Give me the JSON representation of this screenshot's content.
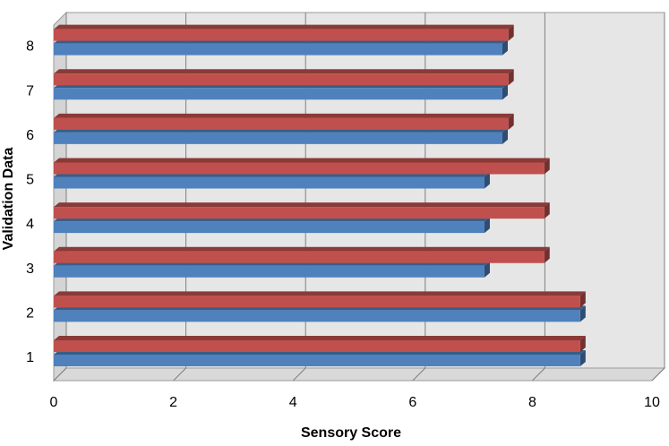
{
  "chart_data": {
    "type": "bar",
    "orientation": "horizontal",
    "style": "3d",
    "categories": [
      "1",
      "2",
      "3",
      "4",
      "5",
      "6",
      "7",
      "8"
    ],
    "series": [
      {
        "color": "#4f81bd",
        "values": [
          8.8,
          8.8,
          7.2,
          7.2,
          7.2,
          7.5,
          7.5,
          7.5
        ]
      },
      {
        "color": "#c0504d",
        "values": [
          8.8,
          8.8,
          8.2,
          8.2,
          8.2,
          7.6,
          7.6,
          7.6
        ]
      }
    ],
    "xlabel": "Sensory Score",
    "ylabel": "Validation Data",
    "xlim": [
      0,
      10
    ],
    "xticks": [
      "0",
      "2",
      "4",
      "6",
      "8",
      "10"
    ],
    "grid": true,
    "legend": "none",
    "plot_background": "#e6e6e6"
  }
}
